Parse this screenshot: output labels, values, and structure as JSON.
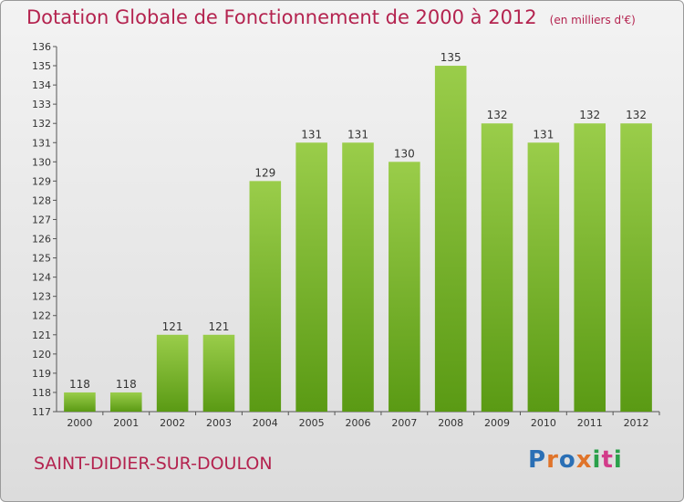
{
  "header": {
    "title": "Dotation Globale de Fonctionnement de 2000 à 2012",
    "subtitle": "(en milliers d'€)"
  },
  "footer": {
    "commune": "SAINT-DIDIER-SUR-DOULON",
    "logo": "Proxiti",
    "logo_colors": [
      "#2a6fb5",
      "#e0742a",
      "#2a6fb5",
      "#e0742a",
      "#2aa04a",
      "#d23c8a",
      "#2aa04a"
    ]
  },
  "colors": {
    "bar_light": "#9acd4a",
    "bar_dark": "#5a9a14",
    "accent": "#b4234f"
  },
  "chart_data": {
    "type": "bar",
    "title": "Dotation Globale de Fonctionnement de 2000 à 2012",
    "subtitle": "(en milliers d'€)",
    "categories": [
      "2000",
      "2001",
      "2002",
      "2003",
      "2004",
      "2005",
      "2006",
      "2007",
      "2008",
      "2009",
      "2010",
      "2011",
      "2012"
    ],
    "values": [
      118,
      118,
      121,
      121,
      129,
      131,
      131,
      130,
      135,
      132,
      131,
      132,
      132
    ],
    "ylim": [
      117,
      136
    ],
    "yticks": [
      117,
      118,
      119,
      120,
      121,
      122,
      123,
      124,
      125,
      126,
      127,
      128,
      129,
      130,
      131,
      132,
      133,
      134,
      135,
      136
    ],
    "grid": false,
    "xlabel": "",
    "ylabel": ""
  }
}
